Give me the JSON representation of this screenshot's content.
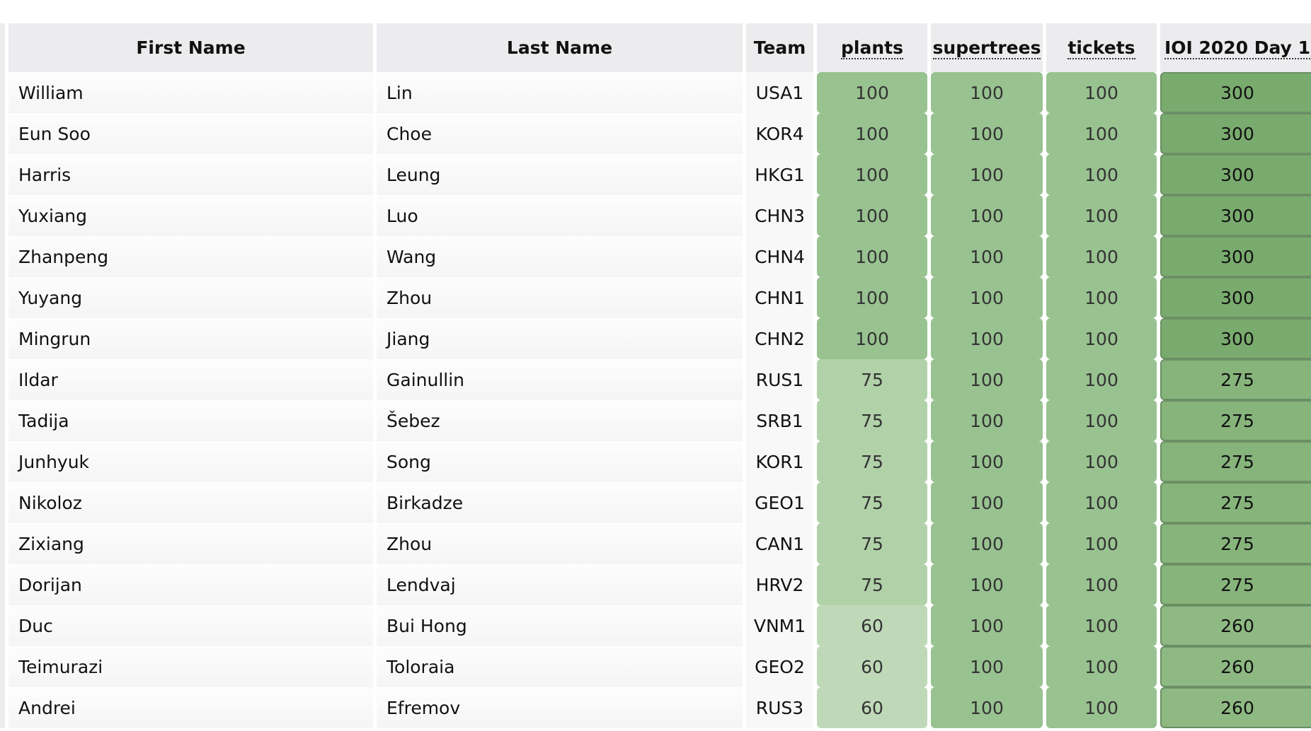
{
  "table": {
    "columns": [
      "First Name",
      "Last Name",
      "Team",
      "plants",
      "supertrees",
      "tickets",
      "IOI 2020 Day 1"
    ],
    "rows": [
      [
        "William",
        "Lin",
        "USA1",
        100,
        100,
        100,
        300
      ],
      [
        "Eun Soo",
        "Choe",
        "KOR4",
        100,
        100,
        100,
        300
      ],
      [
        "Harris",
        "Leung",
        "HKG1",
        100,
        100,
        100,
        300
      ],
      [
        "Yuxiang",
        "Luo",
        "CHN3",
        100,
        100,
        100,
        300
      ],
      [
        "Zhanpeng",
        "Wang",
        "CHN4",
        100,
        100,
        100,
        300
      ],
      [
        "Yuyang",
        "Zhou",
        "CHN1",
        100,
        100,
        100,
        300
      ],
      [
        "Mingrun",
        "Jiang",
        "CHN2",
        100,
        100,
        100,
        300
      ],
      [
        "Ildar",
        "Gainullin",
        "RUS1",
        75,
        100,
        100,
        275
      ],
      [
        "Tadija",
        "Šebez",
        "SRB1",
        75,
        100,
        100,
        275
      ],
      [
        "Junhyuk",
        "Song",
        "KOR1",
        75,
        100,
        100,
        275
      ],
      [
        "Nikoloz",
        "Birkadze",
        "GEO1",
        75,
        100,
        100,
        275
      ],
      [
        "Zixiang",
        "Zhou",
        "CAN1",
        75,
        100,
        100,
        275
      ],
      [
        "Dorijan",
        "Lendvaj",
        "HRV2",
        75,
        100,
        100,
        275
      ],
      [
        "Duc",
        "Bui Hong",
        "VNM1",
        60,
        100,
        100,
        260
      ],
      [
        "Teimurazi",
        "Toloraia",
        "GEO2",
        60,
        100,
        100,
        260
      ],
      [
        "Andrei",
        "Efremov",
        "RUS3",
        60,
        100,
        100,
        260
      ]
    ]
  }
}
